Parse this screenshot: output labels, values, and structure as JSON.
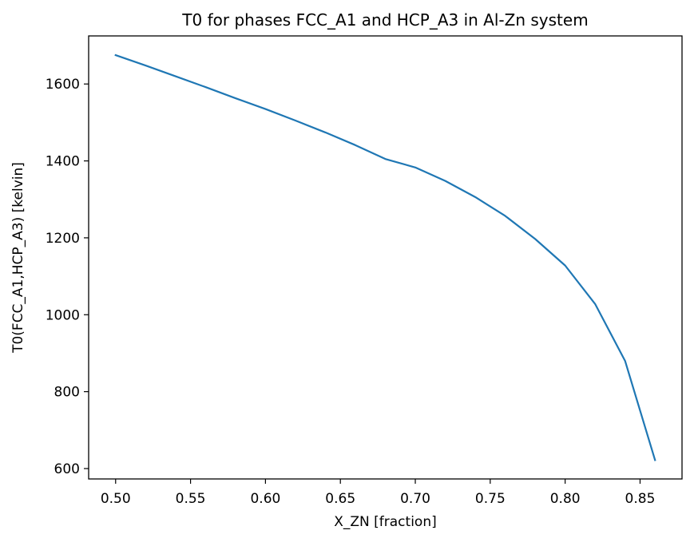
{
  "chart_data": {
    "type": "line",
    "title": "T0 for phases FCC_A1 and HCP_A3 in Al-Zn system",
    "xlabel": "X_ZN [fraction]",
    "ylabel": "T0(FCC_A1,HCP_A3) [kelvin]",
    "xlim": [
      0.482,
      0.878
    ],
    "ylim": [
      573,
      1725
    ],
    "xticks": [
      0.5,
      0.55,
      0.6,
      0.65,
      0.7,
      0.75,
      0.8,
      0.85
    ],
    "xtick_labels": [
      "0.50",
      "0.55",
      "0.60",
      "0.65",
      "0.70",
      "0.75",
      "0.80",
      "0.85"
    ],
    "yticks": [
      600,
      800,
      1000,
      1200,
      1400,
      1600
    ],
    "ytick_labels": [
      "600",
      "800",
      "1000",
      "1200",
      "1400",
      "1600"
    ],
    "grid": false,
    "series": [
      {
        "color": "#1f77b4",
        "x": [
          0.5,
          0.52,
          0.54,
          0.56,
          0.58,
          0.6,
          0.62,
          0.64,
          0.66,
          0.68,
          0.7,
          0.72,
          0.74,
          0.76,
          0.78,
          0.8,
          0.82,
          0.84,
          0.86
        ],
        "y": [
          1675,
          1648,
          1620,
          1592,
          1563,
          1535,
          1505,
          1474,
          1441,
          1405,
          1383,
          1348,
          1306,
          1257,
          1197,
          1128,
          1028,
          880,
          622
        ]
      }
    ]
  }
}
